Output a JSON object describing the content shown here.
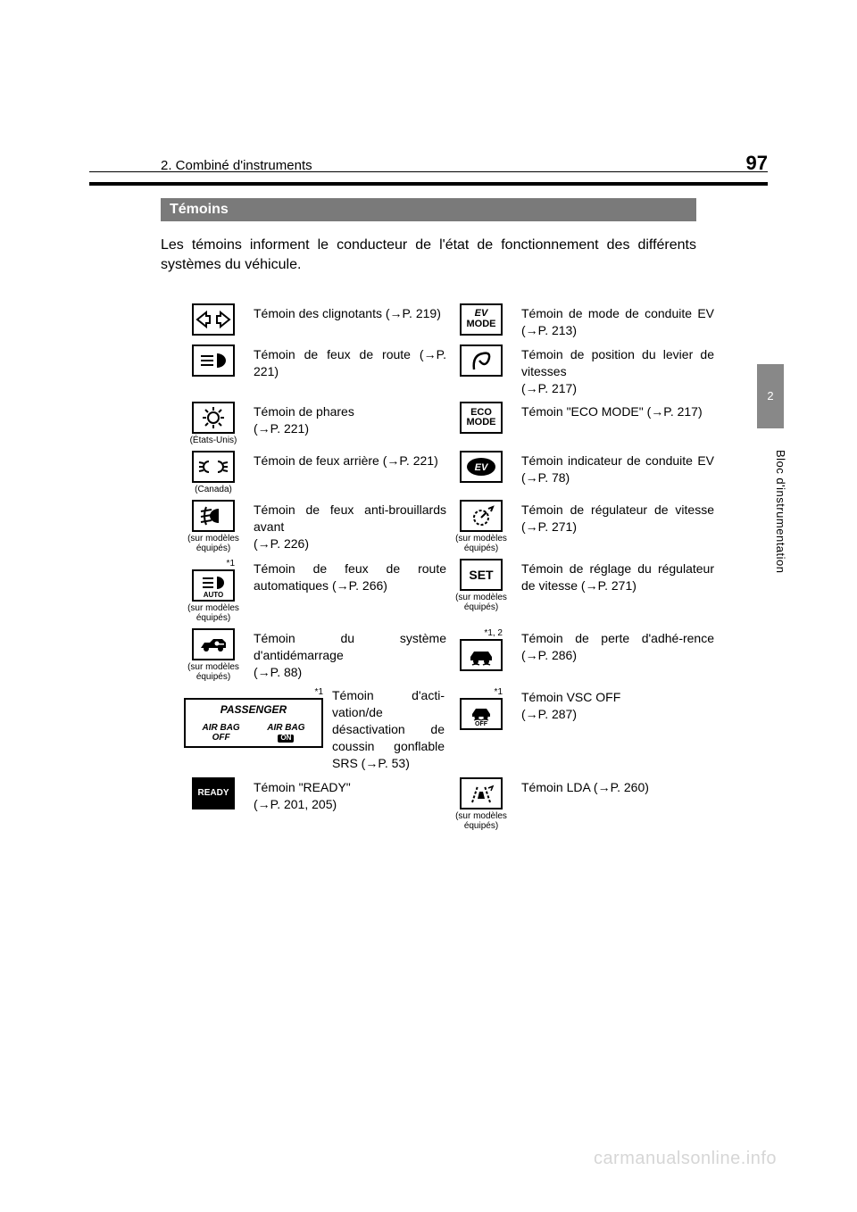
{
  "header": {
    "chapter": "2. Combiné d'instruments",
    "page_number": "97"
  },
  "section": {
    "title": "Témoins",
    "intro": "Les témoins informent le conducteur de l'état de fonctionnement des différents systèmes du véhicule."
  },
  "side_tab": {
    "number": "2",
    "label": "Bloc d'instrumentation"
  },
  "watermark": "carmanualsonline.info",
  "labels": {
    "us": "(États-Unis)",
    "canada": "(Canada)",
    "equipped": "(sur modèles\néquipés)",
    "star1": "*1",
    "star12": "*1, 2"
  },
  "airbag_icon": {
    "passenger": "PASSENGER",
    "left_top": "AIR BAG",
    "left_bot": "OFF",
    "right_top": "AIR BAG",
    "right_badge": "ON"
  },
  "items": {
    "turn": {
      "desc": "Témoin des clignotants (→P. 219)"
    },
    "high_beam": {
      "desc": "Témoin de feux de route (→P. 221)"
    },
    "headlamp": {
      "desc": "Témoin de phares\n(→P. 221)"
    },
    "tail": {
      "desc": "Témoin de feux arrière (→P. 221)"
    },
    "fog": {
      "desc": "Témoin de feux anti-brouillards avant\n(→P. 226)"
    },
    "auto_high": {
      "desc": "Témoin de feux de route automatiques (→P. 266)"
    },
    "immob": {
      "desc": "Témoin du système d'antidémarrage\n(→P. 88)"
    },
    "airbag": {
      "desc": "Témoin d'acti-vation/de désactivation de coussin gonflable SRS (→P. 53)"
    },
    "ready": {
      "desc": "Témoin \"READY\"\n(→P. 201, 205)",
      "icon_text": "READY"
    },
    "ev_mode": {
      "desc": "Témoin de mode de conduite EV (→P. 213)",
      "icon_top": "EV",
      "icon_bot": "MODE"
    },
    "shift": {
      "desc": "Témoin de position du levier de vitesses\n(→P. 217)"
    },
    "eco": {
      "desc": "Témoin \"ECO MODE\" (→P. 217)",
      "icon_top": "ECO",
      "icon_bot": "MODE"
    },
    "ev_ind": {
      "desc": "Témoin indicateur de conduite EV (→P. 78)",
      "icon_text": "EV"
    },
    "cruise": {
      "desc": "Témoin de régulateur de vitesse (→P. 271)"
    },
    "set": {
      "desc": "Témoin de réglage du régulateur de vitesse (→P. 271)",
      "icon_text": "SET"
    },
    "slip": {
      "desc": "Témoin de perte d'adhé-rence (→P. 286)"
    },
    "vsc_off": {
      "desc": "Témoin VSC OFF\n(→P. 287)"
    },
    "lda": {
      "desc": "Témoin LDA (→P. 260)"
    }
  }
}
